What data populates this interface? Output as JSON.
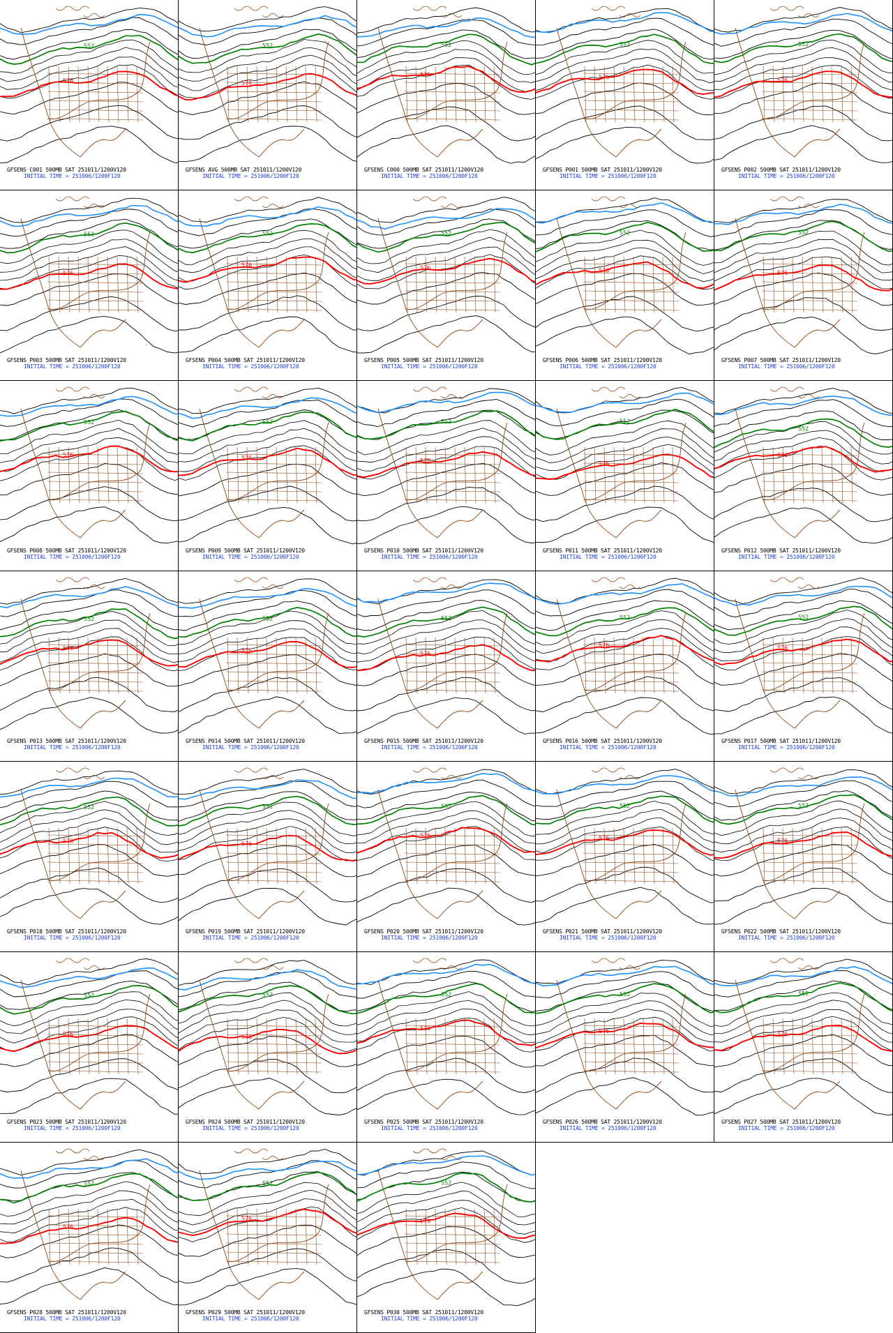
{
  "colors": {
    "contour": "#000000",
    "contour_576": "#ff0000",
    "contour_552": "#008000",
    "contour_cold": "#1e90ff",
    "geography": "#8b4513",
    "initial_time_text": "#1f3fd6"
  },
  "contour_labels": {
    "warm": "576",
    "mid": "552"
  },
  "initial_time_label": "INITIAL TIME = 251006/1200F120",
  "panels": [
    {
      "title": "GFSENS C001 500MB SAT 251011/1200V120",
      "initial": "INITIAL TIME = 251006/1200F120"
    },
    {
      "title": "GFSENS AVG 500MB SAT 251011/1200V120",
      "initial": "INITIAL TIME = 251006/1200F120"
    },
    {
      "title": "GFSENS C000 500MB SAT 251011/1200V120",
      "initial": "INITIAL TIME = 251006/1200F120"
    },
    {
      "title": "GFSENS P001 500MB SAT 251011/1200V120",
      "initial": "INITIAL TIME = 251006/1200F120"
    },
    {
      "title": "GFSENS P002 500MB SAT 251011/1200V120",
      "initial": "INITIAL TIME = 251006/1200F120"
    },
    {
      "title": "GFSENS P003 500MB SAT 251011/1200V120",
      "initial": "INITIAL TIME = 251006/1200F120"
    },
    {
      "title": "GFSENS P004 500MB SAT 251011/1200V120",
      "initial": "INITIAL TIME = 251006/1200F120"
    },
    {
      "title": "GFSENS P005 500MB SAT 251011/1200V120",
      "initial": "INITIAL TIME = 251006/1200F120"
    },
    {
      "title": "GFSENS P006 500MB SAT 251011/1200V120",
      "initial": "INITIAL TIME = 251006/1200F120"
    },
    {
      "title": "GFSENS P007 500MB SAT 251011/1200V120",
      "initial": "INITIAL TIME = 251006/1200F120"
    },
    {
      "title": "GFSENS P008 500MB SAT 251011/1200V120",
      "initial": "INITIAL TIME = 251006/1200F120"
    },
    {
      "title": "GFSENS P009 500MB SAT 251011/1200V120",
      "initial": "INITIAL TIME = 251006/1200F120"
    },
    {
      "title": "GFSENS P010 500MB SAT 251011/1200V120",
      "initial": "INITIAL TIME = 251006/1200F120"
    },
    {
      "title": "GFSENS P011 500MB SAT 251011/1200V120",
      "initial": "INITIAL TIME = 251006/1200F120"
    },
    {
      "title": "GFSENS P012 500MB SAT 251011/1200V120",
      "initial": "INITIAL TIME = 251006/1200F120"
    },
    {
      "title": "GFSENS P013 500MB SAT 251011/1200V120",
      "initial": "INITIAL TIME = 251006/1200F120"
    },
    {
      "title": "GFSENS P014 500MB SAT 251011/1200V120",
      "initial": "INITIAL TIME = 251006/1200F120"
    },
    {
      "title": "GFSENS P015 500MB SAT 251011/1200V120",
      "initial": "INITIAL TIME = 251006/1200F120"
    },
    {
      "title": "GFSENS P016 500MB SAT 251011/1200V120",
      "initial": "INITIAL TIME = 251006/1200F120"
    },
    {
      "title": "GFSENS P017 500MB SAT 251011/1200V120",
      "initial": "INITIAL TIME = 251006/1200F120"
    },
    {
      "title": "GFSENS P018 500MB SAT 251011/1200V120",
      "initial": "INITIAL TIME = 251006/1200F120"
    },
    {
      "title": "GFSENS P019 500MB SAT 251011/1200V120",
      "initial": "INITIAL TIME = 251006/1200F120"
    },
    {
      "title": "GFSENS P020 500MB SAT 251011/1200V120",
      "initial": "INITIAL TIME = 251006/1200F120"
    },
    {
      "title": "GFSENS P021 500MB SAT 251011/1200V120",
      "initial": "INITIAL TIME = 251006/1200F120"
    },
    {
      "title": "GFSENS P022 500MB SAT 251011/1200V120",
      "initial": "INITIAL TIME = 251006/1200F120"
    },
    {
      "title": "GFSENS P023 500MB SAT 251011/1200V120",
      "initial": "INITIAL TIME = 251006/1200F120"
    },
    {
      "title": "GFSENS P024 500MB SAT 251011/1200V120",
      "initial": "INITIAL TIME = 251006/1200F120"
    },
    {
      "title": "GFSENS P025 500MB SAT 251011/1200V120",
      "initial": "INITIAL TIME = 251006/1200F120"
    },
    {
      "title": "GFSENS P026 500MB SAT 251011/1200V120",
      "initial": "INITIAL TIME = 251006/1200F120"
    },
    {
      "title": "GFSENS P027 500MB SAT 251011/1200V120",
      "initial": "INITIAL TIME = 251006/1200F120"
    },
    {
      "title": "GFSENS P028 500MB SAT 251011/1200V120",
      "initial": "INITIAL TIME = 251006/1200F120"
    },
    {
      "title": "GFSENS P029 500MB SAT 251011/1200V120",
      "initial": "INITIAL TIME = 251006/1200F120"
    },
    {
      "title": "GFSENS P030 500MB SAT 251011/1200V120",
      "initial": "INITIAL TIME = 251006/1200F120"
    }
  ]
}
